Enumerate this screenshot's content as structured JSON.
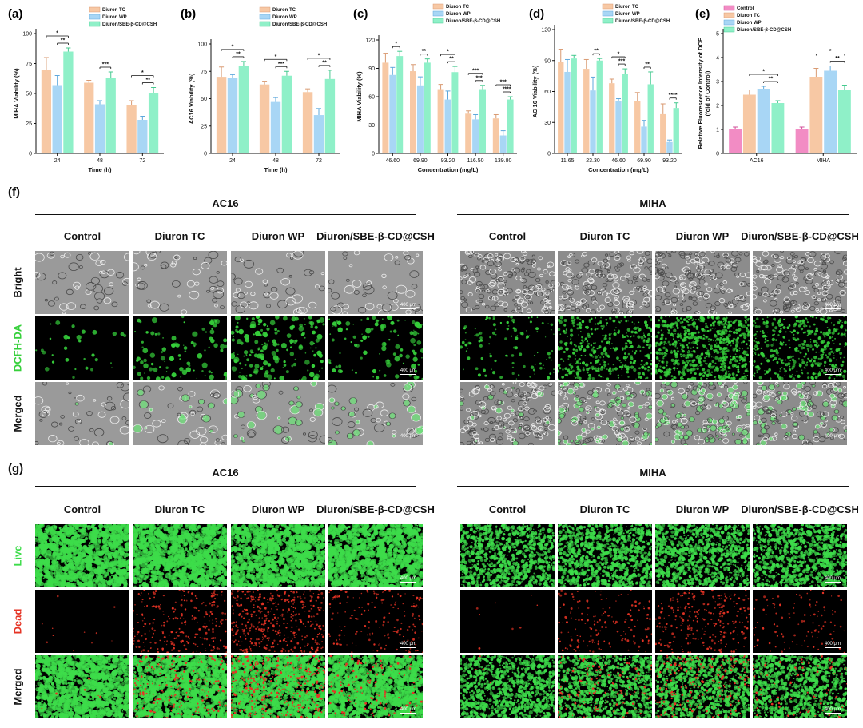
{
  "panels": {
    "f": {
      "label": "(f)"
    },
    "g": {
      "label": "(g)"
    }
  },
  "legend_sets": {
    "three": [
      "Diuron TC",
      "Diuron WP",
      "Diuron/SBE-β-CD@CSH"
    ],
    "four": [
      "Control",
      "Diuron TC",
      "Diuron WP",
      "Diuron/SBE-β-CD@CSH"
    ]
  },
  "colors": {
    "control": "#f28cc4",
    "tc": "#f7c8a4",
    "wp": "#a8d6f5",
    "csh": "#8ff0c8",
    "live": "#3ddc4a",
    "dead": "#e53324",
    "green_fluor": "#36d03b"
  },
  "chart_data": [
    {
      "panel": "(a)",
      "type": "bar",
      "categories": [
        "24",
        "48",
        "72"
      ],
      "series": [
        {
          "name": "Diuron TC",
          "values": [
            70,
            59,
            40
          ],
          "err": [
            10,
            2,
            4
          ]
        },
        {
          "name": "Diuron WP",
          "values": [
            57,
            41,
            28
          ],
          "err": [
            8,
            3,
            3
          ]
        },
        {
          "name": "Diuron/SBE-β-CD@CSH",
          "values": [
            85,
            63,
            50
          ],
          "err": [
            3,
            5,
            5
          ]
        }
      ],
      "ylabel": "MIHA Viability (%)",
      "xlabel": "Time (h)",
      "ylim": [
        0,
        100
      ],
      "yticks": [
        "0",
        "25",
        "50",
        "75",
        "100"
      ],
      "annotations": [
        {
          "group": 0,
          "from": 0,
          "to": 2,
          "text": "*"
        },
        {
          "group": 0,
          "from": 1,
          "to": 2,
          "text": "**"
        },
        {
          "group": 1,
          "from": 1,
          "to": 2,
          "text": "***"
        },
        {
          "group": 2,
          "from": 0,
          "to": 2,
          "text": "*"
        },
        {
          "group": 2,
          "from": 1,
          "to": 2,
          "text": "**"
        }
      ]
    },
    {
      "panel": "(b)",
      "type": "bar",
      "categories": [
        "24",
        "48",
        "72"
      ],
      "series": [
        {
          "name": "Diuron TC",
          "values": [
            70,
            63,
            56
          ],
          "err": [
            9,
            3,
            3
          ]
        },
        {
          "name": "Diuron WP",
          "values": [
            69,
            47,
            35
          ],
          "err": [
            3,
            4,
            6
          ]
        },
        {
          "name": "Diuron/SBE-β-CD@CSH",
          "values": [
            80,
            71,
            68
          ],
          "err": [
            4,
            4,
            8
          ]
        }
      ],
      "ylabel": "AC16 Viability (%)",
      "xlabel": "Time (h)",
      "ylim": [
        0,
        100
      ],
      "yticks": [
        "0",
        "25",
        "50",
        "75",
        "100"
      ],
      "annotations": [
        {
          "group": 0,
          "from": 0,
          "to": 2,
          "text": "*"
        },
        {
          "group": 0,
          "from": 1,
          "to": 2,
          "text": "**"
        },
        {
          "group": 1,
          "from": 0,
          "to": 2,
          "text": "*"
        },
        {
          "group": 1,
          "from": 1,
          "to": 2,
          "text": "***"
        },
        {
          "group": 2,
          "from": 0,
          "to": 2,
          "text": "*"
        },
        {
          "group": 2,
          "from": 1,
          "to": 2,
          "text": "**"
        }
      ]
    },
    {
      "panel": "(c)",
      "type": "bar",
      "categories": [
        "46.60",
        "69.90",
        "93.20",
        "116.50",
        "139.80"
      ],
      "series": [
        {
          "name": "Diuron TC",
          "values": [
            96,
            87,
            68,
            42,
            37
          ],
          "err": [
            10,
            7,
            5,
            3,
            4
          ]
        },
        {
          "name": "Diuron WP",
          "values": [
            83,
            72,
            57,
            36,
            19
          ],
          "err": [
            8,
            9,
            9,
            5,
            5
          ]
        },
        {
          "name": "Diuron/SBE-β-CD@CSH",
          "values": [
            103,
            96,
            86,
            68,
            57
          ],
          "err": [
            5,
            4,
            6,
            4,
            3
          ]
        }
      ],
      "ylabel": "MIHA Viability (%)",
      "xlabel": "Concentration (mg/L)",
      "ylim": [
        0,
        120
      ],
      "yticks": [
        "0",
        "30",
        "60",
        "90",
        "120"
      ],
      "annotations": [
        {
          "group": 0,
          "from": 1,
          "to": 2,
          "text": "*"
        },
        {
          "group": 1,
          "from": 1,
          "to": 2,
          "text": "**"
        },
        {
          "group": 2,
          "from": 0,
          "to": 2,
          "text": "*"
        },
        {
          "group": 2,
          "from": 1,
          "to": 2,
          "text": "**"
        },
        {
          "group": 3,
          "from": 0,
          "to": 2,
          "text": "***"
        },
        {
          "group": 3,
          "from": 1,
          "to": 2,
          "text": "***"
        },
        {
          "group": 4,
          "from": 0,
          "to": 2,
          "text": "***"
        },
        {
          "group": 4,
          "from": 1,
          "to": 2,
          "text": "****"
        }
      ]
    },
    {
      "panel": "(d)",
      "type": "bar",
      "categories": [
        "11.65",
        "23.30",
        "46.60",
        "69.90",
        "93.20"
      ],
      "series": [
        {
          "name": "Diuron TC",
          "values": [
            89,
            82,
            68,
            51,
            38
          ],
          "err": [
            12,
            9,
            4,
            8,
            10
          ]
        },
        {
          "name": "Diuron WP",
          "values": [
            79,
            61,
            51,
            26,
            11
          ],
          "err": [
            12,
            13,
            2,
            6,
            2
          ]
        },
        {
          "name": "Diuron/SBE-β-CD@CSH",
          "values": [
            92,
            90,
            77,
            67,
            44
          ],
          "err": [
            3,
            2,
            5,
            12,
            5
          ]
        }
      ],
      "ylabel": "AC 16 Viability (%)",
      "xlabel": "Concentration (mg/L)",
      "ylim": [
        0,
        120
      ],
      "yticks": [
        "0",
        "30",
        "60",
        "90",
        "120"
      ],
      "annotations": [
        {
          "group": 1,
          "from": 1,
          "to": 2,
          "text": "**"
        },
        {
          "group": 2,
          "from": 0,
          "to": 2,
          "text": "*"
        },
        {
          "group": 2,
          "from": 1,
          "to": 2,
          "text": "***"
        },
        {
          "group": 3,
          "from": 1,
          "to": 2,
          "text": "**"
        },
        {
          "group": 4,
          "from": 1,
          "to": 2,
          "text": "****"
        }
      ]
    },
    {
      "panel": "(e)",
      "type": "bar",
      "categories": [
        "AC16",
        "MIHA"
      ],
      "series": [
        {
          "name": "Control",
          "values": [
            1.0,
            1.0
          ],
          "err": [
            0.1,
            0.1
          ]
        },
        {
          "name": "Diuron TC",
          "values": [
            2.45,
            3.2
          ],
          "err": [
            0.2,
            0.35
          ]
        },
        {
          "name": "Diuron WP",
          "values": [
            2.7,
            3.45
          ],
          "err": [
            0.1,
            0.2
          ]
        },
        {
          "name": "Diuron/SBE-β-CD@CSH",
          "values": [
            2.1,
            2.65
          ],
          "err": [
            0.1,
            0.2
          ]
        }
      ],
      "ylabel": "Relative Fluorescence Intensity of DCF",
      "ylabel2": "(fold of Control)",
      "ylim": [
        0,
        5
      ],
      "yticks": [
        "0",
        "1",
        "2",
        "3",
        "4",
        "5"
      ],
      "annotations": [
        {
          "group": 1,
          "from": 1,
          "to": 3,
          "text": "*"
        },
        {
          "group": 1,
          "from": 2,
          "to": 3,
          "text": "**"
        },
        {
          "group": 0,
          "from": 1,
          "to": 3,
          "text": "*"
        },
        {
          "group": 0,
          "from": 2,
          "to": 3,
          "text": "**"
        }
      ]
    }
  ],
  "section_f": {
    "left_title": "AC16",
    "right_title": "MIHA",
    "columns": [
      "Control",
      "Diuron TC",
      "Diuron WP",
      "Diuron/SBE-β-CD@CSH"
    ],
    "rows": [
      "Bright",
      "DCFH-DA",
      "Merged"
    ],
    "scale_bar": "400 μm"
  },
  "section_g": {
    "left_title": "AC16",
    "right_title": "MIHA",
    "columns": [
      "Control",
      "Diuron TC",
      "Diuron WP",
      "Diuron/SBE-β-CD@CSH"
    ],
    "rows": [
      "Live",
      "Dead",
      "Merged"
    ],
    "scale_bar": "400 μm"
  }
}
